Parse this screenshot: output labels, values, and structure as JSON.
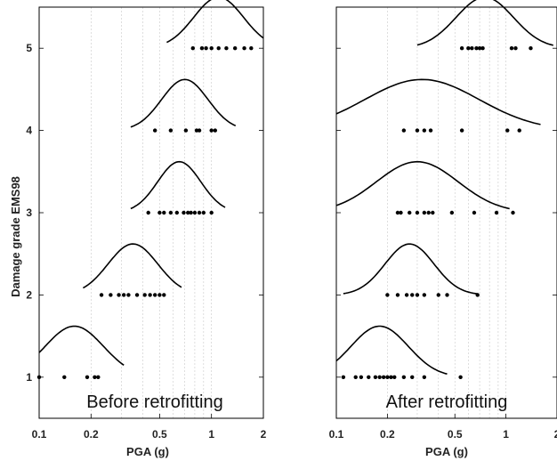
{
  "figure": {
    "ylabel": "Damage grade EMS98",
    "xlabel": "PGA (g)"
  },
  "chart_data": [
    {
      "type": "scatter",
      "title": "Before retrofitting",
      "xlabel": "PGA (g)",
      "ylabel": "Damage grade EMS98",
      "xscale": "log",
      "xlim": [
        0.1,
        2
      ],
      "ylim": [
        0.5,
        5.5
      ],
      "xticks": [
        0.1,
        0.2,
        0.5,
        1,
        2
      ],
      "xtick_labels": [
        "0.1",
        "0.2",
        "0.5",
        "1",
        "2"
      ],
      "yticks": [
        1,
        2,
        3,
        4,
        5
      ],
      "ytick_labels": [
        "1",
        "2",
        "3",
        "4",
        "5"
      ],
      "grid": "vertical",
      "series": [
        {
          "grade": 1,
          "points": [
            0.1,
            0.14,
            0.19,
            0.21,
            0.22
          ],
          "fit": {
            "median": 0.16,
            "log_sigma": 0.35,
            "range": [
              0.1,
              0.31
            ]
          }
        },
        {
          "grade": 2,
          "points": [
            0.23,
            0.26,
            0.29,
            0.31,
            0.33,
            0.37,
            0.41,
            0.44,
            0.47,
            0.5,
            0.53
          ],
          "fit": {
            "median": 0.35,
            "log_sigma": 0.3,
            "range": [
              0.18,
              0.67
            ]
          }
        },
        {
          "grade": 3,
          "points": [
            0.43,
            0.5,
            0.53,
            0.58,
            0.63,
            0.69,
            0.73,
            0.76,
            0.8,
            0.85,
            0.9,
            1.0
          ],
          "fit": {
            "median": 0.65,
            "log_sigma": 0.26,
            "range": [
              0.34,
              1.2
            ]
          }
        },
        {
          "grade": 4,
          "points": [
            0.47,
            0.58,
            0.71,
            0.82,
            0.85,
            1.0,
            1.05
          ],
          "fit": {
            "median": 0.7,
            "log_sigma": 0.28,
            "range": [
              0.34,
              1.38
            ]
          }
        },
        {
          "grade": 5,
          "points": [
            0.78,
            0.88,
            0.93,
            1.0,
            1.1,
            1.22,
            1.37,
            1.55,
            1.7
          ],
          "fit": {
            "median": 1.1,
            "log_sigma": 0.3,
            "range": [
              0.55,
              2.0
            ]
          }
        }
      ]
    },
    {
      "type": "scatter",
      "title": "After retrofitting",
      "xlabel": "PGA (g)",
      "ylabel": "",
      "xscale": "log",
      "xlim": [
        0.1,
        2
      ],
      "ylim": [
        0.5,
        5.5
      ],
      "xticks": [
        0.1,
        0.2,
        0.5,
        1,
        2
      ],
      "xtick_labels": [
        "0.1",
        "0.2",
        "0.5",
        "1",
        "2"
      ],
      "yticks": [
        1,
        2,
        3,
        4,
        5
      ],
      "ytick_labels": [
        "",
        "",
        "",
        "",
        ""
      ],
      "grid": "vertical",
      "series": [
        {
          "grade": 1,
          "points": [
            0.11,
            0.13,
            0.14,
            0.155,
            0.17,
            0.18,
            0.19,
            0.2,
            0.21,
            0.22,
            0.25,
            0.28,
            0.33,
            0.54
          ],
          "fit": {
            "median": 0.18,
            "log_sigma": 0.35,
            "range": [
              0.1,
              0.45
            ]
          }
        },
        {
          "grade": 2,
          "points": [
            0.2,
            0.23,
            0.26,
            0.28,
            0.3,
            0.33,
            0.4,
            0.45,
            0.68
          ],
          "fit": {
            "median": 0.27,
            "log_sigma": 0.3,
            "range": [
              0.11,
              0.68
            ]
          }
        },
        {
          "grade": 3,
          "points": [
            0.23,
            0.24,
            0.27,
            0.3,
            0.33,
            0.35,
            0.37,
            0.48,
            0.65,
            0.88,
            1.1
          ],
          "fit": {
            "median": 0.3,
            "log_sigma": 0.5,
            "range": [
              0.1,
              1.05
            ]
          }
        },
        {
          "grade": 4,
          "points": [
            0.25,
            0.3,
            0.33,
            0.36,
            0.55,
            1.02,
            1.2
          ],
          "fit": {
            "median": 0.32,
            "log_sigma": 0.7,
            "range": [
              0.1,
              1.6
            ]
          }
        },
        {
          "grade": 5,
          "points": [
            0.55,
            0.6,
            0.63,
            0.67,
            0.7,
            0.73,
            1.08,
            1.14,
            1.4
          ],
          "fit": {
            "median": 0.75,
            "log_sigma": 0.35,
            "range": [
              0.3,
              1.9
            ]
          }
        }
      ]
    }
  ]
}
